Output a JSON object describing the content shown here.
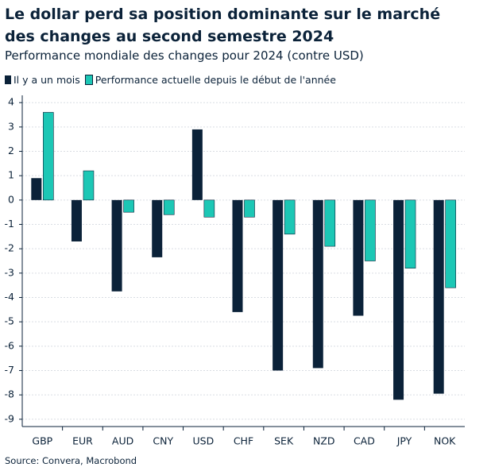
{
  "chart_data": {
    "type": "bar",
    "title": "Le dollar perd sa position dominante sur le marché des changes au second semestre 2024",
    "subtitle": "Performance mondiale des changes pour 2024 (contre USD)",
    "source": "Source: Convera, Macrobond",
    "categories": [
      "GBP",
      "EUR",
      "AUD",
      "CNY",
      "USD",
      "CHF",
      "SEK",
      "NZD",
      "CAD",
      "JPY",
      "NOK"
    ],
    "series": [
      {
        "name": "Il y a un mois",
        "color": "#0b2239",
        "values": [
          0.9,
          -1.7,
          -3.75,
          -2.35,
          2.9,
          -4.6,
          -7.0,
          -6.9,
          -4.75,
          -8.2,
          -7.95
        ]
      },
      {
        "name": "Performance actuelle depuis le début de l'année",
        "color": "#1cc7b5",
        "values": [
          3.6,
          1.2,
          -0.5,
          -0.6,
          -0.7,
          -0.7,
          -1.4,
          -1.9,
          -2.5,
          -2.8,
          -3.6
        ]
      }
    ],
    "ylim": [
      -9.3,
      4.3
    ],
    "yticks": [
      4,
      3,
      2,
      1,
      0,
      -1,
      -2,
      -3,
      -4,
      -5,
      -6,
      -7,
      -8,
      -9
    ],
    "grid": true
  }
}
